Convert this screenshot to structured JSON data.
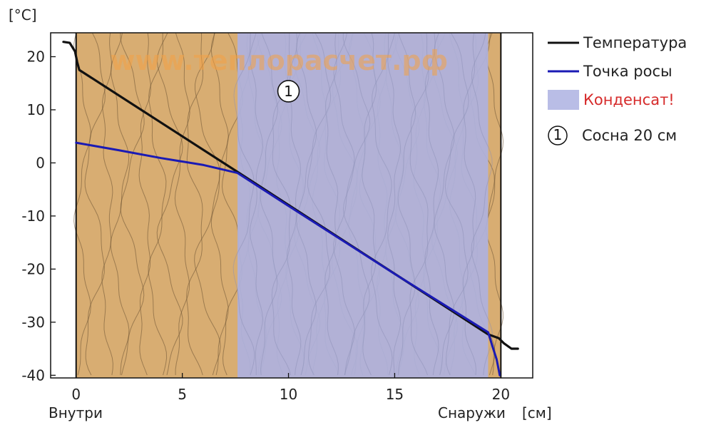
{
  "chart_data": {
    "type": "line",
    "x_unit_label": "[см]",
    "y_unit_label": "[°C]",
    "xlim": [
      -1.2,
      21.5
    ],
    "ylim": [
      -40.5,
      24.5
    ],
    "x_ticks": [
      0,
      5,
      10,
      15,
      20
    ],
    "y_ticks": [
      20,
      10,
      0,
      -10,
      -20,
      -30,
      -40
    ],
    "x_end_labels": {
      "inside": "Внутри",
      "outside": "Снаружи"
    },
    "wall": {
      "start": 0,
      "end": 20
    },
    "condensate_zone": {
      "start": 7.6,
      "end": 19.4
    },
    "watermark": "www.теплорасчет.рф",
    "layer_marker": {
      "number": "1",
      "x": 10,
      "y": 13.5
    },
    "series": [
      {
        "name": "Температура",
        "color": "#111111",
        "points": [
          [
            -0.6,
            22.8
          ],
          [
            -0.3,
            22.6
          ],
          [
            -0.05,
            21.0
          ],
          [
            0.05,
            19.0
          ],
          [
            0.15,
            17.5
          ],
          [
            7.6,
            -1.7
          ],
          [
            19.4,
            -32.3
          ],
          [
            19.9,
            -33.0
          ],
          [
            20.15,
            -34.0
          ],
          [
            20.5,
            -35.0
          ],
          [
            20.8,
            -35.0
          ]
        ]
      },
      {
        "name": "Точка росы",
        "color": "#1a1ab4",
        "points": [
          [
            0.0,
            3.8
          ],
          [
            2.0,
            2.4
          ],
          [
            4.0,
            0.9
          ],
          [
            6.0,
            -0.4
          ],
          [
            7.6,
            -1.9
          ],
          [
            10.0,
            -8.1
          ],
          [
            15.0,
            -20.9
          ],
          [
            19.4,
            -31.9
          ],
          [
            19.6,
            -34.5
          ],
          [
            19.8,
            -37.0
          ],
          [
            19.95,
            -40.0
          ]
        ]
      }
    ],
    "legend": {
      "placement": "right",
      "items": [
        {
          "label": "Температура",
          "kind": "line",
          "color": "#111111"
        },
        {
          "label": "Точка росы",
          "kind": "line",
          "color": "#1a1ab4"
        },
        {
          "label": "Конденсат!",
          "kind": "patch",
          "color": "#b9bde6",
          "text_color": "#d62a2a"
        },
        {
          "label": "Сосна 20 см",
          "kind": "marker",
          "marker": "1",
          "color": "#111111"
        }
      ]
    },
    "colors": {
      "wood": "#d8ad72",
      "wood_grain": "#6b5233",
      "condensate": "#aeb2de",
      "condensate_grain": "#8c8fb6"
    }
  }
}
